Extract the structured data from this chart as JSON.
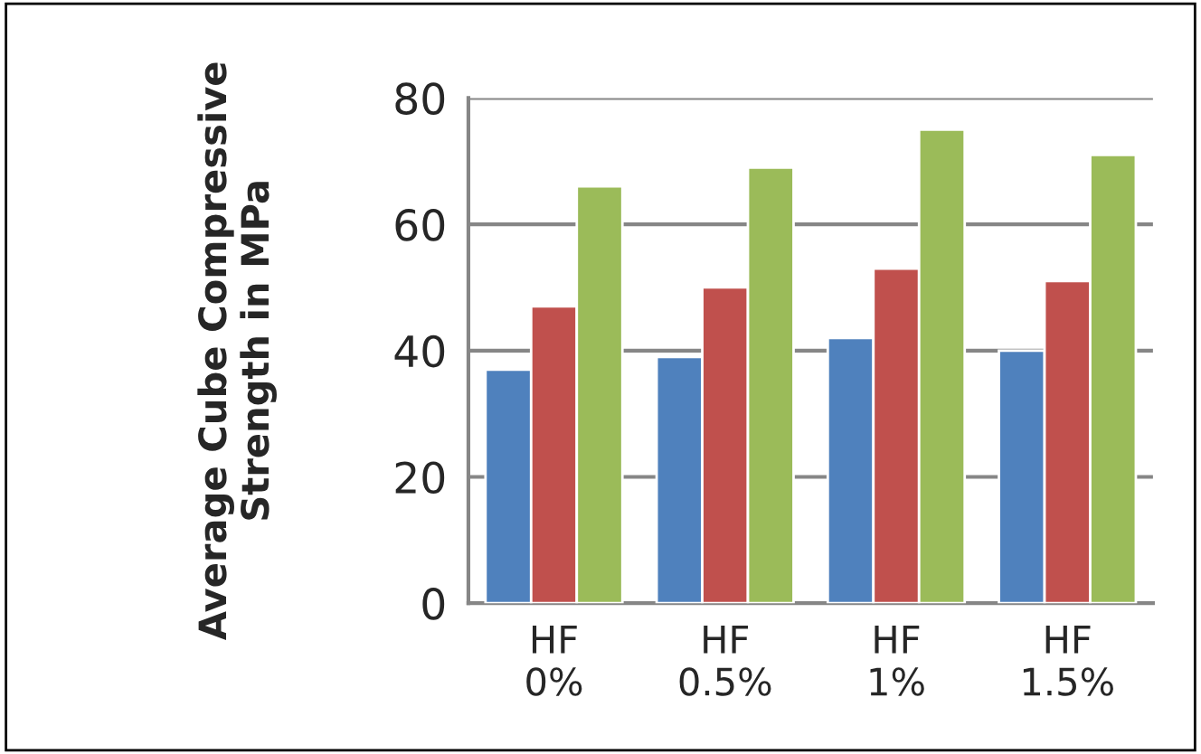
{
  "chart_data": {
    "type": "bar",
    "ylabel": "Average Cube Compressive Strength in MPa",
    "categories": [
      "HF\n0%",
      "HF\n0.5%",
      "HF\n1%",
      "HF\n1.5%"
    ],
    "series": [
      {
        "color": "#4f81bd",
        "values": [
          37,
          39,
          42,
          40
        ]
      },
      {
        "color": "#c0504d",
        "values": [
          47,
          50,
          53,
          51
        ]
      },
      {
        "color": "#9bbb59",
        "values": [
          66,
          69,
          75,
          71
        ]
      }
    ],
    "ylim": [
      0,
      80
    ],
    "yticks": [
      0,
      20,
      40,
      60,
      80
    ],
    "grid": "y",
    "legend": false
  }
}
